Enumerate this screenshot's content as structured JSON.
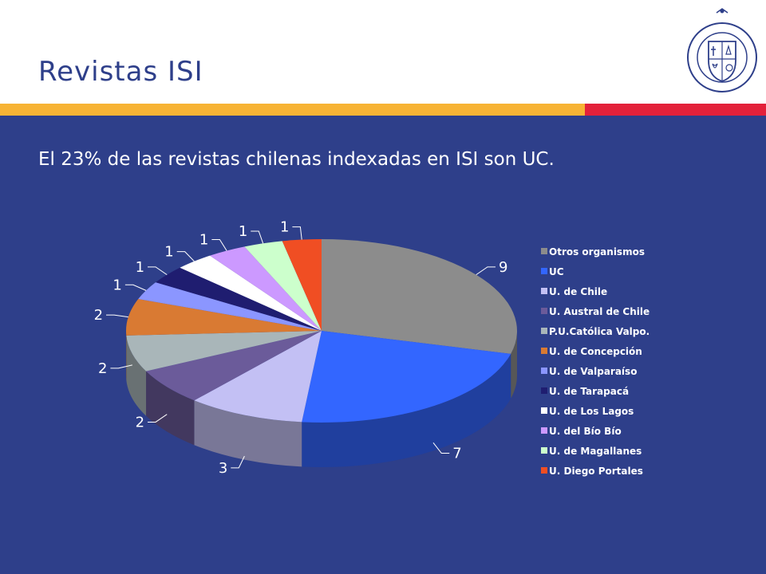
{
  "slide": {
    "title": "Revistas ISI",
    "subtitle": "El 23% de las revistas chilenas indexadas en ISI son UC.",
    "seal_text": "PONTIFICIA UNIVERSIDAD CATÓLICA DE CHILE",
    "colors": {
      "background": "#2e3f8a",
      "header": "#ffffff",
      "title": "#2e3f8a",
      "stripe_yellow": "#f7b334",
      "stripe_red": "#e3213a"
    }
  },
  "chart_data": {
    "type": "pie",
    "title": "",
    "legend_position": "right",
    "categories": [
      "Otros organismos",
      "UC",
      "U. de Chile",
      "U. Austral de Chile",
      "P.U.Católica Valpo.",
      "U. de Concepción",
      "U. de Valparaíso",
      "U. de Tarapacá",
      "U. de Los Lagos",
      "U. del Bío Bío",
      "U. de Magallanes",
      "U. Diego Portales"
    ],
    "values": [
      9,
      7,
      3,
      2,
      2,
      2,
      1,
      1,
      1,
      1,
      1,
      1
    ],
    "colors": [
      "#8c8c8c",
      "#3366ff",
      "#c3c0f4",
      "#6b5b9a",
      "#a9b6b9",
      "#d97a33",
      "#8b96ff",
      "#1f1d70",
      "#ffffff",
      "#cc99ff",
      "#ccffcc",
      "#f04e23"
    ]
  }
}
